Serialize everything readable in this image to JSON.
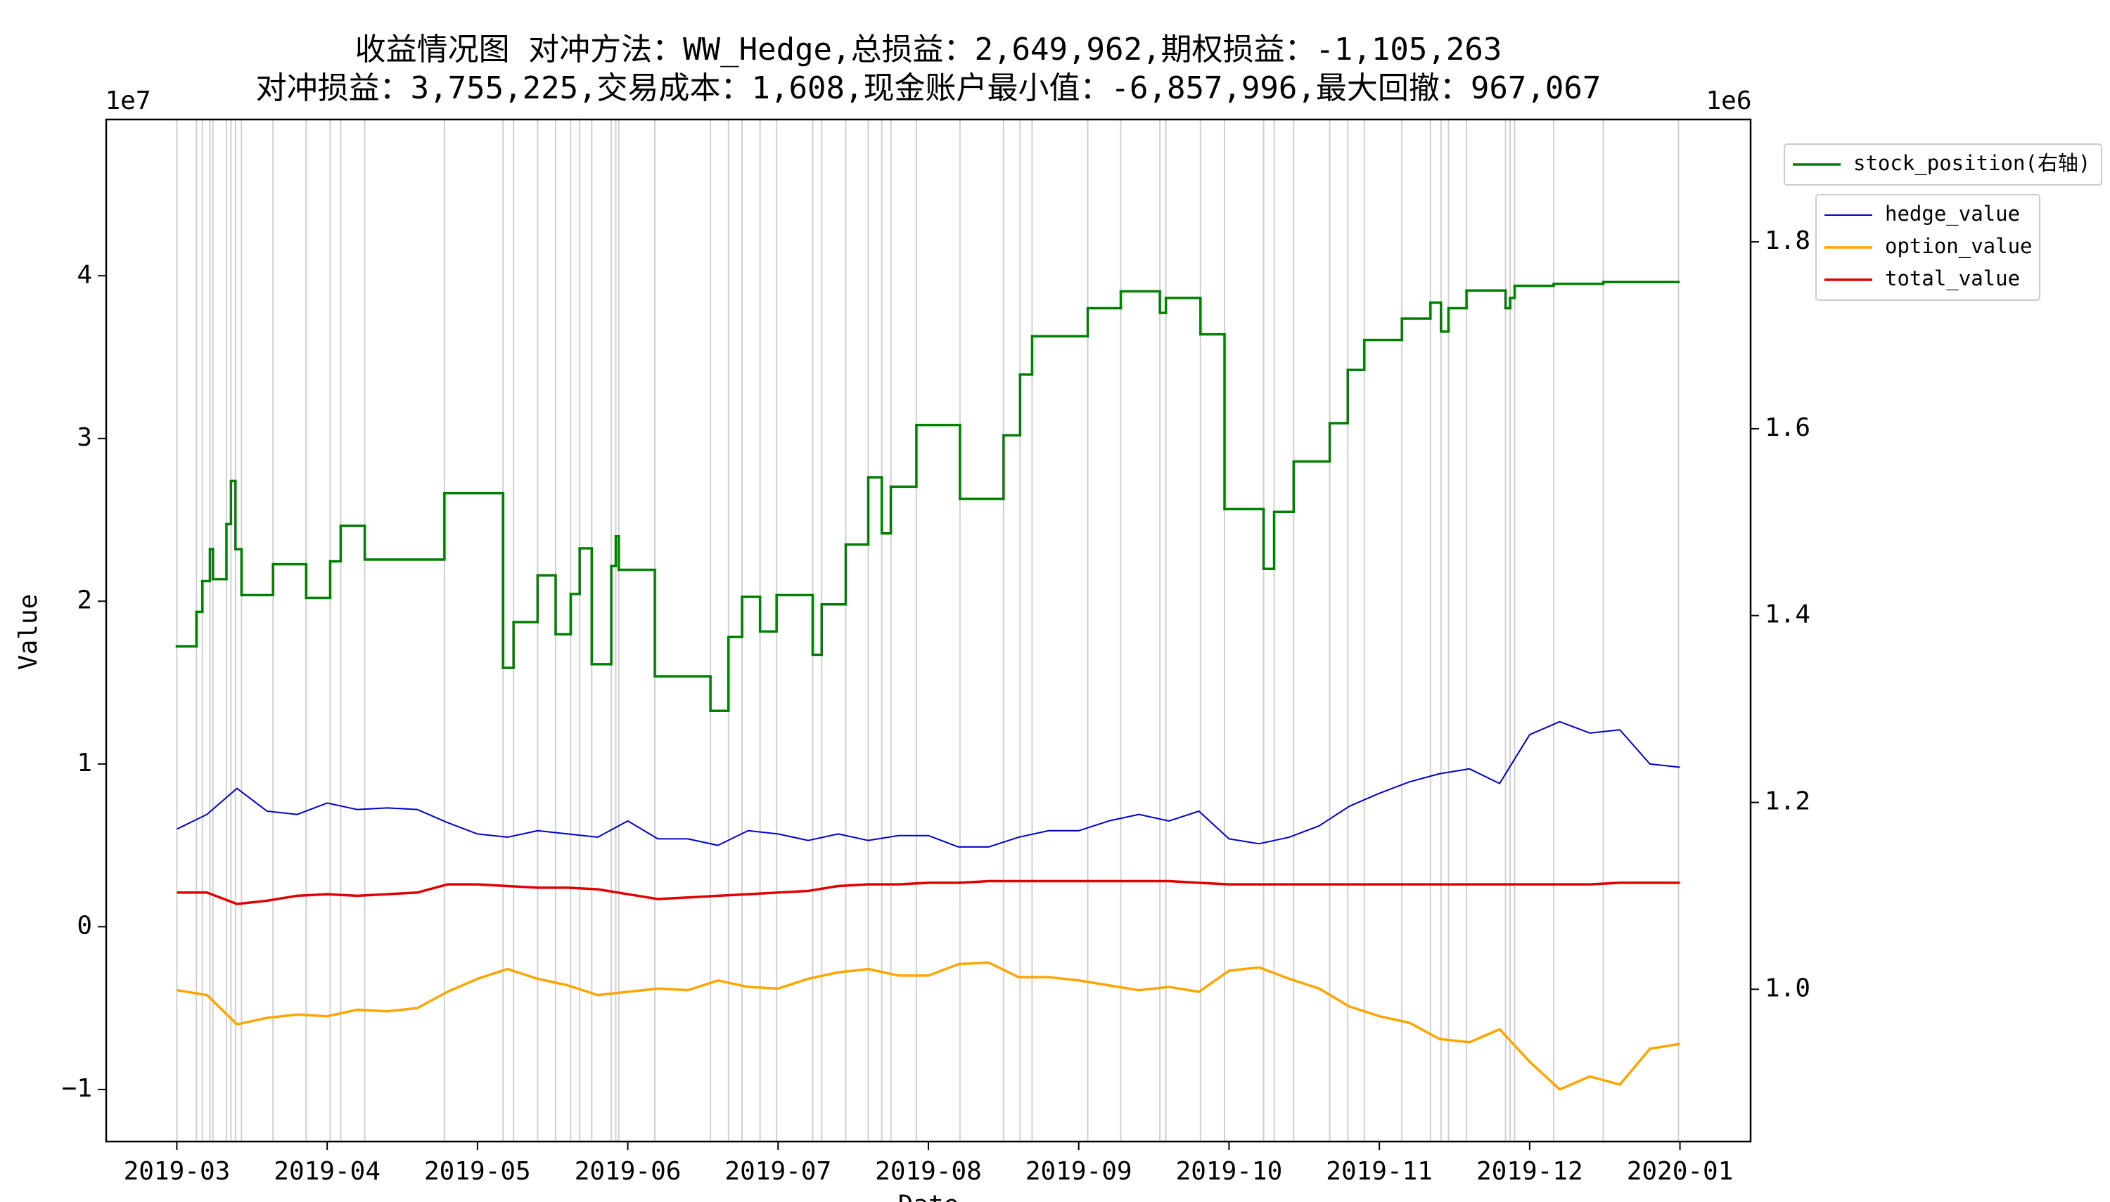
{
  "chart_data": {
    "type": "line",
    "title": "收益情况图 对冲方法：WW_Hedge,总损益：2,649,962,期权损益：-1,105,263",
    "subtitle": "对冲损益：3,755,225,交易成本：1,608,现金账户最小值：-6,857,996,最大回撤：967,067",
    "y_label": "Value",
    "x_label": "Date",
    "y_offset_label": "1e7",
    "y2_offset_label": "1e6",
    "xlim": [
      -0.47,
      10.47
    ],
    "xticks": [
      {
        "value": 0,
        "label": "2019-03"
      },
      {
        "value": 1,
        "label": "2019-04"
      },
      {
        "value": 2,
        "label": "2019-05"
      },
      {
        "value": 3,
        "label": "2019-06"
      },
      {
        "value": 4,
        "label": "2019-07"
      },
      {
        "value": 5,
        "label": "2019-08"
      },
      {
        "value": 6,
        "label": "2019-09"
      },
      {
        "value": 7,
        "label": "2019-10"
      },
      {
        "value": 8,
        "label": "2019-11"
      },
      {
        "value": 9,
        "label": "2019-12"
      },
      {
        "value": 10,
        "label": "2020-01"
      }
    ],
    "ylim": [
      -1.32,
      4.96
    ],
    "yticks": [
      {
        "value": -1,
        "label": "−1"
      },
      0,
      1,
      2,
      3,
      4
    ],
    "y2lim": [
      0.837,
      1.931
    ],
    "y2ticks": [
      {
        "value": 1.0,
        "label": "1.0"
      },
      1.2,
      1.4,
      1.6,
      1.8
    ],
    "trade_lines": true,
    "x": [
      0,
      0.2,
      0.4,
      0.6,
      0.8,
      1,
      1.2,
      1.4,
      1.6,
      1.8,
      2,
      2.2,
      2.4,
      2.6,
      2.8,
      3,
      3.2,
      3.4,
      3.6,
      3.8,
      4,
      4.2,
      4.4,
      4.6,
      4.8,
      5,
      5.2,
      5.4,
      5.6,
      5.8,
      6,
      6.2,
      6.4,
      6.6,
      6.8,
      7,
      7.2,
      7.4,
      7.6,
      7.8,
      8,
      8.2,
      8.4,
      8.6,
      8.8,
      9,
      9.2,
      9.4,
      9.6,
      9.8,
      10
    ],
    "series": [
      {
        "name": "hedge_value",
        "color": "#0000cc",
        "values": [
          0.6,
          0.69,
          0.85,
          0.71,
          0.69,
          0.76,
          0.72,
          0.73,
          0.72,
          0.64,
          0.57,
          0.55,
          0.59,
          0.57,
          0.55,
          0.65,
          0.54,
          0.54,
          0.5,
          0.59,
          0.57,
          0.53,
          0.57,
          0.53,
          0.56,
          0.56,
          0.49,
          0.49,
          0.55,
          0.59,
          0.59,
          0.65,
          0.69,
          0.65,
          0.71,
          0.54,
          0.51,
          0.55,
          0.62,
          0.74,
          0.82,
          0.89,
          0.94,
          0.97,
          0.88,
          1.18,
          1.26,
          1.19,
          1.21,
          1.0,
          0.98
        ]
      },
      {
        "name": "option_value",
        "color": "#ffa500",
        "values": [
          -0.39,
          -0.42,
          -0.6,
          -0.56,
          -0.54,
          -0.55,
          -0.51,
          -0.52,
          -0.5,
          -0.4,
          -0.32,
          -0.26,
          -0.32,
          -0.36,
          -0.42,
          -0.4,
          -0.38,
          -0.39,
          -0.33,
          -0.37,
          -0.38,
          -0.32,
          -0.28,
          -0.26,
          -0.3,
          -0.3,
          -0.23,
          -0.22,
          -0.31,
          -0.31,
          -0.33,
          -0.36,
          -0.39,
          -0.37,
          -0.4,
          -0.27,
          -0.25,
          -0.32,
          -0.38,
          -0.49,
          -0.55,
          -0.59,
          -0.69,
          -0.71,
          -0.63,
          -0.83,
          -1.0,
          -0.92,
          -0.97,
          -0.75,
          -0.72
        ]
      },
      {
        "name": "total_value",
        "color": "#e00000",
        "values": [
          0.21,
          0.21,
          0.14,
          0.16,
          0.19,
          0.2,
          0.19,
          0.2,
          0.21,
          0.26,
          0.26,
          0.25,
          0.24,
          0.24,
          0.23,
          0.2,
          0.17,
          0.18,
          0.19,
          0.2,
          0.21,
          0.22,
          0.25,
          0.26,
          0.26,
          0.27,
          0.27,
          0.28,
          0.28,
          0.28,
          0.28,
          0.28,
          0.28,
          0.28,
          0.27,
          0.26,
          0.26,
          0.26,
          0.26,
          0.26,
          0.26,
          0.26,
          0.26,
          0.26,
          0.26,
          0.26,
          0.26,
          0.26,
          0.27,
          0.27,
          0.27
        ]
      },
      {
        "name": "stock_position(右轴)",
        "color": "#008000",
        "axis": "y2",
        "step": "post",
        "x": [
          0,
          0.13,
          0.17,
          0.22,
          0.24,
          0.33,
          0.36,
          0.39,
          0.43,
          0.64,
          0.86,
          1.02,
          1.09,
          1.25,
          1.78,
          2.17,
          2.24,
          2.4,
          2.52,
          2.62,
          2.68,
          2.76,
          2.89,
          2.92,
          2.94,
          3.18,
          3.55,
          3.67,
          3.76,
          3.88,
          3.99,
          4.23,
          4.29,
          4.45,
          4.6,
          4.69,
          4.75,
          4.92,
          5.21,
          5.5,
          5.61,
          5.69,
          6.06,
          6.28,
          6.54,
          6.58,
          6.81,
          6.97,
          7.23,
          7.3,
          7.43,
          7.67,
          7.79,
          7.9,
          8.15,
          8.34,
          8.41,
          8.46,
          8.58,
          8.84,
          8.87,
          8.9,
          9.16,
          9.49,
          9.99
        ],
        "values": [
          1.367,
          1.404,
          1.437,
          1.471,
          1.439,
          1.498,
          1.544,
          1.471,
          1.422,
          1.455,
          1.419,
          1.458,
          1.496,
          1.46,
          1.531,
          1.344,
          1.393,
          1.443,
          1.38,
          1.423,
          1.472,
          1.348,
          1.453,
          1.485,
          1.449,
          1.335,
          1.298,
          1.377,
          1.42,
          1.383,
          1.422,
          1.358,
          1.412,
          1.476,
          1.548,
          1.488,
          1.538,
          1.604,
          1.525,
          1.593,
          1.658,
          1.699,
          1.729,
          1.747,
          1.724,
          1.74,
          1.701,
          1.514,
          1.45,
          1.511,
          1.565,
          1.606,
          1.663,
          1.695,
          1.718,
          1.735,
          1.704,
          1.729,
          1.748,
          1.729,
          1.74,
          1.753,
          1.755,
          1.757,
          1.757
        ]
      }
    ]
  }
}
